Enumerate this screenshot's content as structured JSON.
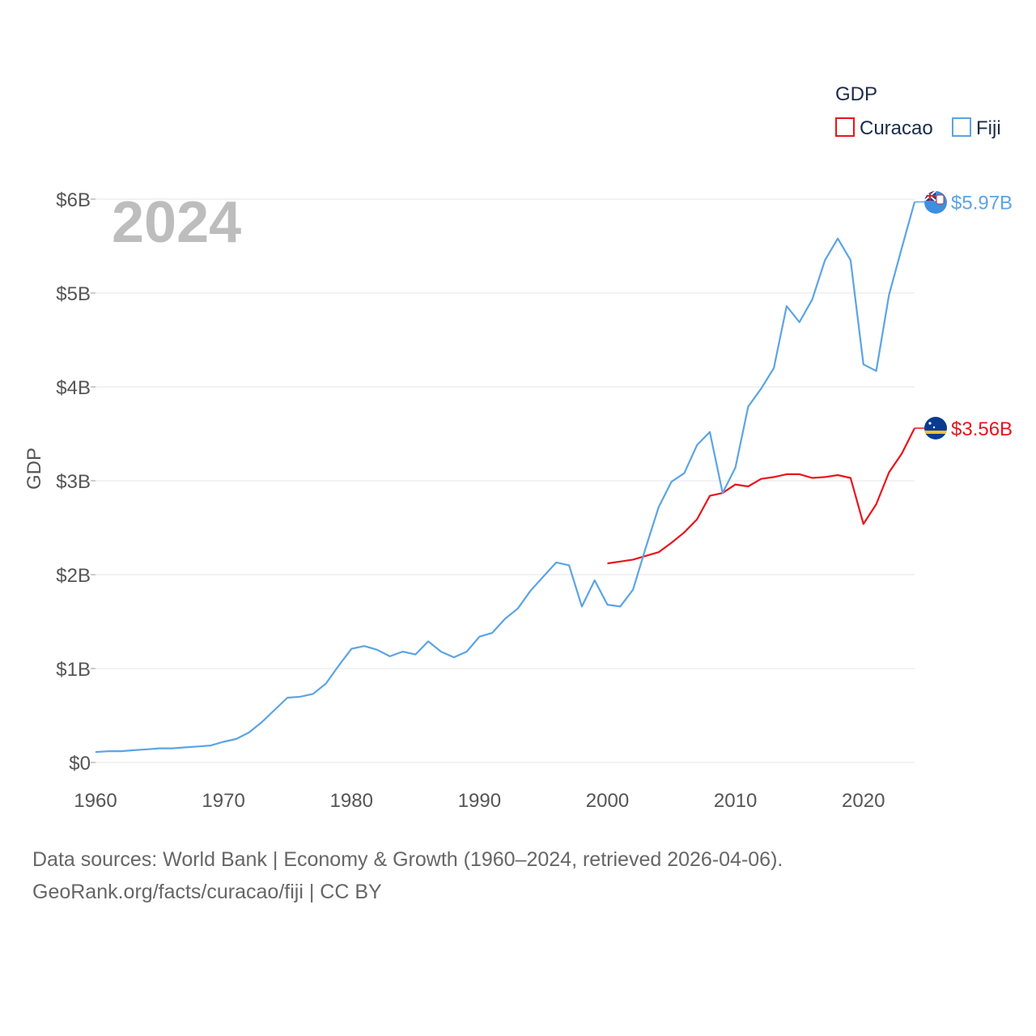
{
  "chart_data": {
    "type": "line",
    "title": "GDP",
    "xlabel": "",
    "ylabel": "GDP",
    "xlim": [
      1960,
      2024
    ],
    "ylim": [
      0,
      6000000000
    ],
    "yticks": [
      {
        "value": 0,
        "label": "$0"
      },
      {
        "value": 1000000000,
        "label": "$1B"
      },
      {
        "value": 2000000000,
        "label": "$2B"
      },
      {
        "value": 3000000000,
        "label": "$3B"
      },
      {
        "value": 4000000000,
        "label": "$4B"
      },
      {
        "value": 5000000000,
        "label": "$5B"
      },
      {
        "value": 6000000000,
        "label": "$6B"
      }
    ],
    "xticks": [
      {
        "value": 1960,
        "label": "1960"
      },
      {
        "value": 1970,
        "label": "1970"
      },
      {
        "value": 1980,
        "label": "1980"
      },
      {
        "value": 1990,
        "label": "1990"
      },
      {
        "value": 2000,
        "label": "2000"
      },
      {
        "value": 2010,
        "label": "2010"
      },
      {
        "value": 2020,
        "label": "2020"
      }
    ],
    "year_label": "2024",
    "legend": {
      "title": "GDP",
      "position": "top-right"
    },
    "series": [
      {
        "name": "Curacao",
        "color": "#e8141c",
        "end_label": "$3.56B",
        "flag": "curacao-flag-icon",
        "x": [
          2000,
          2001,
          2002,
          2003,
          2004,
          2005,
          2006,
          2007,
          2008,
          2009,
          2010,
          2011,
          2012,
          2013,
          2014,
          2015,
          2016,
          2017,
          2018,
          2019,
          2020,
          2021,
          2022,
          2023,
          2024
        ],
        "values": [
          2.12,
          2.14,
          2.16,
          2.2,
          2.24,
          2.34,
          2.45,
          2.59,
          2.84,
          2.87,
          2.96,
          2.94,
          3.02,
          3.04,
          3.07,
          3.07,
          3.03,
          3.04,
          3.06,
          3.03,
          2.54,
          2.75,
          3.09,
          3.29,
          3.56
        ],
        "value_unit": "billion USD"
      },
      {
        "name": "Fiji",
        "color": "#5ba4e6",
        "end_label": "$5.97B",
        "flag": "fiji-flag-icon",
        "x": [
          1960,
          1961,
          1962,
          1963,
          1964,
          1965,
          1966,
          1967,
          1968,
          1969,
          1970,
          1971,
          1972,
          1973,
          1974,
          1975,
          1976,
          1977,
          1978,
          1979,
          1980,
          1981,
          1982,
          1983,
          1984,
          1985,
          1986,
          1987,
          1988,
          1989,
          1990,
          1991,
          1992,
          1993,
          1994,
          1995,
          1996,
          1997,
          1998,
          1999,
          2000,
          2001,
          2002,
          2003,
          2004,
          2005,
          2006,
          2007,
          2008,
          2009,
          2010,
          2011,
          2012,
          2013,
          2014,
          2015,
          2016,
          2017,
          2018,
          2019,
          2020,
          2021,
          2022,
          2023,
          2024
        ],
        "values": [
          0.11,
          0.12,
          0.12,
          0.13,
          0.14,
          0.15,
          0.15,
          0.16,
          0.17,
          0.18,
          0.22,
          0.25,
          0.32,
          0.43,
          0.56,
          0.69,
          0.7,
          0.73,
          0.84,
          1.03,
          1.21,
          1.24,
          1.2,
          1.13,
          1.18,
          1.15,
          1.29,
          1.18,
          1.12,
          1.18,
          1.34,
          1.38,
          1.53,
          1.64,
          1.83,
          1.98,
          2.13,
          2.1,
          1.66,
          1.94,
          1.68,
          1.66,
          1.84,
          2.29,
          2.72,
          2.99,
          3.08,
          3.38,
          3.52,
          2.87,
          3.14,
          3.79,
          3.98,
          4.2,
          4.86,
          4.69,
          4.93,
          5.35,
          5.58,
          5.35,
          4.24,
          4.17,
          4.98,
          5.48,
          5.97
        ],
        "value_unit": "billion USD"
      }
    ],
    "grid": true
  },
  "footer": {
    "line1": "Data sources: World Bank | Economy & Growth (1960–2024, retrieved 2026-04-06).",
    "line2": "GeoRank.org/facts/curacao/fiji | CC BY"
  }
}
